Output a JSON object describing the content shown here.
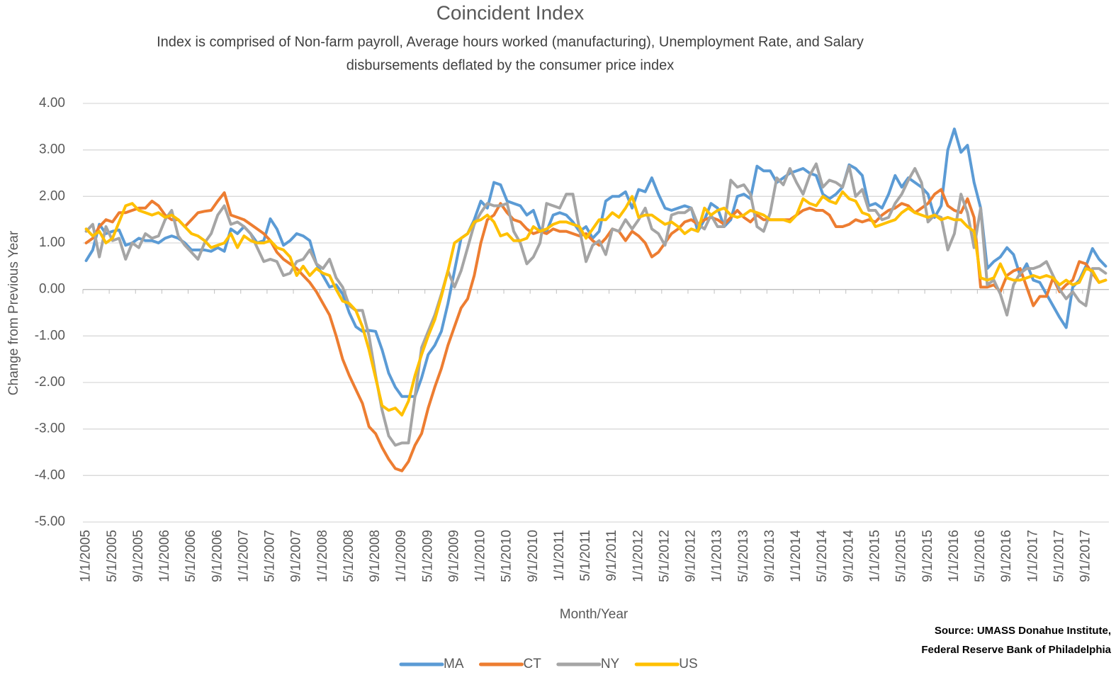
{
  "chart_data": {
    "type": "line",
    "title": "Coincident Index",
    "subtitle": [
      "Index is comprised of Non-farm payroll, Average hours worked (manufacturing), Unemployment Rate, and Salary",
      "disbursements deflated by the consumer price index"
    ],
    "x_label": "Month/Year",
    "y_label": "Change from Previous Year",
    "source": [
      "Source:  UMASS Donahue Institute,",
      "Federal Reserve Bank of Philadelphia"
    ],
    "categories": [
      "1/1/2005",
      null,
      null,
      null,
      "5/1/2005",
      null,
      null,
      null,
      "9/1/2005",
      null,
      null,
      null,
      "1/1/2006",
      null,
      null,
      null,
      "5/1/2006",
      null,
      null,
      null,
      "9/1/2006",
      null,
      null,
      null,
      "1/1/2007",
      null,
      null,
      null,
      "5/1/2007",
      null,
      null,
      null,
      "9/1/2007",
      null,
      null,
      null,
      "1/1/2008",
      null,
      null,
      null,
      "5/1/2008",
      null,
      null,
      null,
      "9/1/2008",
      null,
      null,
      null,
      "1/1/2009",
      null,
      null,
      null,
      "5/1/2009",
      null,
      null,
      null,
      "9/1/2009",
      null,
      null,
      null,
      "1/1/2010",
      null,
      null,
      null,
      "5/1/2010",
      null,
      null,
      null,
      "9/1/2010",
      null,
      null,
      null,
      "1/1/2011",
      null,
      null,
      null,
      "5/1/2011",
      null,
      null,
      null,
      "9/1/2011",
      null,
      null,
      null,
      "1/1/2012",
      null,
      null,
      null,
      "5/1/2012",
      null,
      null,
      null,
      "9/1/2012",
      null,
      null,
      null,
      "1/1/2013",
      null,
      null,
      null,
      "5/1/2013",
      null,
      null,
      null,
      "9/1/2013",
      null,
      null,
      null,
      "1/1/2014",
      null,
      null,
      null,
      "5/1/2014",
      null,
      null,
      null,
      "9/1/2014",
      null,
      null,
      null,
      "1/1/2015",
      null,
      null,
      null,
      "5/1/2015",
      null,
      null,
      null,
      "9/1/2015",
      null,
      null,
      null,
      "1/1/2016",
      null,
      null,
      null,
      "5/1/2016",
      null,
      null,
      null,
      "9/1/2016",
      null,
      null,
      null,
      "1/1/2017",
      null,
      null,
      null,
      "5/1/2017",
      null,
      null,
      null,
      "9/1/2017",
      null,
      null,
      null
    ],
    "series": [
      {
        "name": "MA",
        "color": "#5b9bd5",
        "values": [
          0.62,
          0.85,
          1.4,
          1.2,
          1.25,
          1.28,
          0.95,
          1.0,
          1.1,
          1.05,
          1.05,
          1.0,
          1.1,
          1.15,
          1.1,
          1.0,
          0.85,
          0.85,
          0.85,
          0.82,
          0.9,
          0.82,
          1.3,
          1.2,
          1.35,
          1.2,
          1.0,
          1.05,
          1.52,
          1.3,
          0.95,
          1.05,
          1.2,
          1.15,
          1.05,
          0.55,
          0.3,
          0.05,
          0.1,
          -0.1,
          -0.5,
          -0.8,
          -0.9,
          -0.88,
          -0.9,
          -1.3,
          -1.8,
          -2.1,
          -2.3,
          -2.3,
          -2.3,
          -1.9,
          -1.4,
          -1.2,
          -0.9,
          -0.3,
          0.4,
          1.1,
          1.2,
          1.5,
          1.9,
          1.75,
          2.3,
          2.25,
          1.9,
          1.85,
          1.8,
          1.6,
          1.7,
          1.3,
          1.25,
          1.6,
          1.65,
          1.6,
          1.45,
          1.25,
          1.35,
          1.1,
          1.25,
          1.9,
          2.0,
          2.0,
          2.1,
          1.75,
          2.15,
          2.1,
          2.4,
          2.05,
          1.75,
          1.7,
          1.75,
          1.8,
          1.75,
          1.25,
          1.5,
          1.85,
          1.75,
          1.35,
          1.5,
          2.0,
          2.05,
          1.95,
          2.65,
          2.55,
          2.55,
          2.3,
          2.4,
          2.5,
          2.55,
          2.6,
          2.5,
          2.45,
          2.05,
          1.95,
          2.05,
          2.2,
          2.68,
          2.6,
          2.45,
          1.8,
          1.85,
          1.75,
          2.05,
          2.45,
          2.2,
          2.4,
          2.3,
          2.2,
          2.05,
          1.55,
          1.8,
          3.0,
          3.45,
          2.95,
          3.1,
          2.3,
          1.75,
          0.45,
          0.6,
          0.7,
          0.9,
          0.75,
          0.3,
          0.55,
          0.2,
          0.15,
          -0.1,
          -0.35,
          -0.6,
          -0.82,
          0.05,
          0.2,
          0.5,
          0.88,
          0.65,
          0.5
        ]
      },
      {
        "name": "CT",
        "color": "#ed7d31",
        "values": [
          1.0,
          1.1,
          1.35,
          1.5,
          1.45,
          1.65,
          1.65,
          1.7,
          1.75,
          1.75,
          1.9,
          1.8,
          1.6,
          1.5,
          1.5,
          1.35,
          1.5,
          1.65,
          1.68,
          1.7,
          1.9,
          2.08,
          1.6,
          1.55,
          1.5,
          1.4,
          1.3,
          1.2,
          1.05,
          0.8,
          0.65,
          0.55,
          0.45,
          0.3,
          0.15,
          -0.05,
          -0.3,
          -0.55,
          -1.0,
          -1.5,
          -1.85,
          -2.15,
          -2.45,
          -2.95,
          -3.1,
          -3.4,
          -3.65,
          -3.85,
          -3.9,
          -3.7,
          -3.35,
          -3.1,
          -2.55,
          -2.1,
          -1.7,
          -1.2,
          -0.8,
          -0.4,
          -0.2,
          0.3,
          1.0,
          1.5,
          1.6,
          1.85,
          1.65,
          1.5,
          1.45,
          1.3,
          1.2,
          1.25,
          1.2,
          1.3,
          1.25,
          1.25,
          1.2,
          1.15,
          1.2,
          1.05,
          0.95,
          1.1,
          1.3,
          1.25,
          1.05,
          1.25,
          1.15,
          1.0,
          0.7,
          0.8,
          1.0,
          1.2,
          1.3,
          1.45,
          1.5,
          1.4,
          1.5,
          1.55,
          1.5,
          1.4,
          1.55,
          1.7,
          1.55,
          1.45,
          1.6,
          1.5,
          1.5,
          1.5,
          1.5,
          1.5,
          1.6,
          1.7,
          1.75,
          1.7,
          1.7,
          1.6,
          1.35,
          1.35,
          1.4,
          1.5,
          1.45,
          1.5,
          1.45,
          1.6,
          1.7,
          1.75,
          1.85,
          1.8,
          1.65,
          1.75,
          1.85,
          2.05,
          2.15,
          1.8,
          1.7,
          1.65,
          1.95,
          1.55,
          0.05,
          0.05,
          0.1,
          -0.05,
          0.3,
          0.4,
          0.45,
          0.05,
          -0.35,
          -0.15,
          -0.15,
          0.25,
          -0.05,
          0.1,
          0.2,
          0.6,
          0.55,
          0.35,
          0.15,
          0.2
        ]
      },
      {
        "name": "NY",
        "color": "#a5a5a5",
        "values": [
          1.25,
          1.4,
          0.7,
          1.35,
          1.05,
          1.1,
          0.65,
          1.0,
          0.9,
          1.2,
          1.1,
          1.15,
          1.5,
          1.7,
          1.15,
          0.95,
          0.8,
          0.65,
          1.0,
          1.2,
          1.6,
          1.8,
          1.4,
          1.45,
          1.35,
          1.2,
          0.9,
          0.6,
          0.65,
          0.6,
          0.3,
          0.35,
          0.6,
          0.65,
          0.85,
          0.55,
          0.45,
          0.65,
          0.25,
          0.05,
          -0.35,
          -0.45,
          -0.45,
          -1.0,
          -1.85,
          -2.6,
          -3.15,
          -3.35,
          -3.3,
          -3.3,
          -2.3,
          -1.25,
          -0.9,
          -0.55,
          -0.1,
          0.4,
          0.05,
          0.4,
          0.9,
          1.4,
          1.65,
          1.85,
          1.8,
          1.8,
          1.85,
          1.25,
          1.0,
          0.55,
          0.7,
          1.0,
          1.85,
          1.8,
          1.75,
          2.05,
          2.05,
          1.3,
          0.6,
          0.95,
          1.05,
          0.75,
          1.3,
          1.25,
          1.5,
          1.3,
          1.5,
          1.75,
          1.3,
          1.2,
          0.95,
          1.6,
          1.65,
          1.65,
          1.75,
          1.4,
          1.3,
          1.6,
          1.35,
          1.35,
          2.35,
          2.2,
          2.25,
          2.05,
          1.35,
          1.25,
          1.65,
          2.4,
          2.25,
          2.6,
          2.3,
          2.05,
          2.45,
          2.7,
          2.2,
          2.35,
          2.3,
          2.2,
          2.65,
          2.0,
          2.15,
          1.7,
          1.7,
          1.5,
          1.55,
          1.85,
          2.05,
          2.35,
          2.6,
          2.3,
          1.45,
          1.6,
          1.55,
          0.85,
          1.2,
          2.05,
          1.65,
          0.9,
          1.75,
          0.1,
          0.2,
          -0.1,
          -0.55,
          0.1,
          0.35,
          0.45,
          0.45,
          0.5,
          0.6,
          0.3,
          0.0,
          -0.2,
          -0.05,
          -0.25,
          -0.35,
          0.45,
          0.45,
          0.35
        ]
      },
      {
        "name": "US",
        "color": "#ffc000",
        "values": [
          1.3,
          1.15,
          1.25,
          1.0,
          1.1,
          1.45,
          1.8,
          1.85,
          1.7,
          1.65,
          1.6,
          1.65,
          1.55,
          1.6,
          1.5,
          1.35,
          1.2,
          1.15,
          1.05,
          0.9,
          0.95,
          1.0,
          1.2,
          0.9,
          1.15,
          1.05,
          1.0,
          1.0,
          1.05,
          0.9,
          0.85,
          0.7,
          0.3,
          0.5,
          0.3,
          0.45,
          0.35,
          0.3,
          0.0,
          -0.25,
          -0.3,
          -0.45,
          -0.8,
          -1.3,
          -1.9,
          -2.5,
          -2.6,
          -2.55,
          -2.7,
          -2.4,
          -1.85,
          -1.4,
          -1.0,
          -0.65,
          -0.15,
          0.4,
          1.0,
          1.1,
          1.2,
          1.45,
          1.5,
          1.6,
          1.45,
          1.15,
          1.2,
          1.05,
          1.05,
          1.1,
          1.35,
          1.25,
          1.3,
          1.4,
          1.45,
          1.45,
          1.4,
          1.35,
          1.1,
          1.3,
          1.5,
          1.5,
          1.65,
          1.55,
          1.75,
          2.0,
          1.55,
          1.6,
          1.6,
          1.5,
          1.4,
          1.45,
          1.35,
          1.2,
          1.3,
          1.25,
          1.75,
          1.6,
          1.7,
          1.75,
          1.6,
          1.55,
          1.6,
          1.7,
          1.65,
          1.6,
          1.5,
          1.5,
          1.5,
          1.45,
          1.6,
          1.95,
          1.85,
          1.8,
          2.0,
          1.9,
          1.85,
          2.1,
          1.95,
          1.9,
          1.65,
          1.6,
          1.35,
          1.4,
          1.45,
          1.5,
          1.65,
          1.75,
          1.65,
          1.6,
          1.55,
          1.6,
          1.5,
          1.55,
          1.5,
          1.5,
          1.35,
          1.25,
          0.25,
          0.2,
          0.25,
          0.55,
          0.25,
          0.2,
          0.2,
          0.25,
          0.3,
          0.25,
          0.3,
          0.25,
          0.1,
          0.2,
          0.1,
          0.15,
          0.45,
          0.4,
          0.15,
          0.2
        ]
      }
    ],
    "ylim": [
      -5,
      4
    ],
    "yticks": [
      {
        "value": -5,
        "label": "-5.00"
      },
      {
        "value": -4,
        "label": "-4.00"
      },
      {
        "value": -3,
        "label": "-3.00"
      },
      {
        "value": -2,
        "label": "-2.00"
      },
      {
        "value": -1,
        "label": "-1.00"
      },
      {
        "value": 0,
        "label": "0.00"
      },
      {
        "value": 1,
        "label": "1.00"
      },
      {
        "value": 2,
        "label": "2.00"
      },
      {
        "value": 3,
        "label": "3.00"
      },
      {
        "value": 4,
        "label": "4.00"
      }
    ],
    "grid": true,
    "legend": "bottom"
  }
}
